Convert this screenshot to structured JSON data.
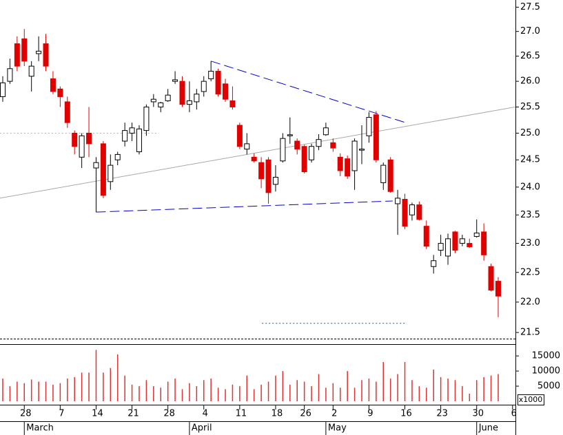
{
  "chart_data": {
    "type": "candlestick",
    "log_scale": true,
    "ylim": [
      21.4,
      27.65
    ],
    "yticks": [
      21.5,
      {
        "value": 22,
        "label": "22.0"
      },
      22.5,
      {
        "value": 23,
        "label": "23.0"
      },
      23.5,
      {
        "value": 24,
        "label": "24.0"
      },
      24.5,
      {
        "value": 25,
        "label": "25.0"
      },
      25.5,
      {
        "value": 26,
        "label": "26.0"
      },
      26.5,
      {
        "value": 27,
        "label": "27.0"
      },
      27.5
    ],
    "up_color": "#ffffff",
    "down_color": "#e00000",
    "categories": [
      null,
      null,
      null,
      "28",
      null,
      null,
      null,
      null,
      "7",
      null,
      null,
      null,
      null,
      "14",
      null,
      null,
      null,
      null,
      "21",
      null,
      null,
      null,
      null,
      "28",
      null,
      null,
      null,
      null,
      "4",
      null,
      null,
      null,
      null,
      "11",
      null,
      null,
      null,
      null,
      "18",
      null,
      null,
      null,
      "26",
      null,
      null,
      null,
      "2",
      null,
      null,
      null,
      null,
      "9",
      null,
      null,
      null,
      null,
      "16",
      null,
      null,
      null,
      null,
      "23",
      null,
      null,
      null,
      null,
      "30",
      null,
      null,
      null,
      null,
      "6"
    ],
    "months": [
      null,
      null,
      null,
      "March",
      null,
      null,
      null,
      null,
      null,
      null,
      null,
      null,
      null,
      null,
      null,
      null,
      null,
      null,
      null,
      null,
      null,
      null,
      null,
      null,
      null,
      null,
      "April",
      null,
      null,
      null,
      null,
      null,
      null,
      null,
      null,
      null,
      null,
      null,
      null,
      null,
      null,
      null,
      null,
      null,
      null,
      "May",
      null,
      null,
      null,
      null,
      null,
      null,
      null,
      null,
      null,
      null,
      null,
      null,
      null,
      null,
      null,
      null,
      null,
      null,
      null,
      null,
      "June",
      null,
      null,
      null,
      null,
      null
    ],
    "open": [
      25.7,
      26.0,
      26.75,
      26.85,
      26.1,
      26.55,
      26.75,
      26.05,
      25.85,
      25.6,
      25.0,
      24.55,
      25.0,
      24.35,
      24.8,
      24.1,
      24.5,
      24.85,
      25.0,
      24.65,
      25.05,
      25.6,
      25.5,
      25.62,
      26.0,
      26.0,
      25.55,
      25.6,
      25.8,
      26.05,
      26.2,
      25.95,
      25.62,
      25.15,
      24.7,
      24.55,
      24.45,
      24.5,
      24.05,
      24.48,
      24.95,
      24.85,
      24.75,
      24.5,
      24.75,
      24.97,
      24.82,
      24.55,
      24.52,
      24.3,
      24.68,
      24.95,
      25.35,
      24.08,
      24.5,
      23.7,
      23.78,
      23.5,
      23.68,
      23.3,
      22.6,
      22.88,
      22.78,
      23.2,
      23.0,
      23.0,
      23.12,
      23.2,
      22.6,
      22.35,
      null,
      null
    ],
    "high": [
      26.1,
      26.45,
      26.9,
      27.05,
      26.4,
      26.9,
      26.95,
      26.2,
      25.9,
      25.7,
      25.05,
      25.0,
      25.5,
      24.55,
      24.85,
      24.6,
      24.65,
      25.2,
      25.2,
      25.15,
      25.55,
      25.75,
      25.6,
      25.85,
      26.2,
      26.1,
      26.0,
      25.85,
      26.1,
      26.4,
      26.25,
      26.05,
      25.9,
      25.2,
      25.0,
      24.62,
      24.55,
      24.55,
      24.4,
      25.0,
      25.3,
      24.9,
      24.78,
      24.8,
      24.98,
      25.2,
      24.9,
      24.62,
      24.58,
      24.9,
      25.15,
      25.4,
      25.42,
      24.45,
      24.55,
      23.95,
      23.88,
      23.72,
      23.74,
      23.4,
      22.8,
      23.15,
      23.17,
      23.22,
      23.15,
      23.08,
      23.42,
      23.35,
      22.65,
      22.42,
      null,
      null
    ],
    "low": [
      25.6,
      25.95,
      26.2,
      26.3,
      25.8,
      26.4,
      26.2,
      25.75,
      25.5,
      25.1,
      24.6,
      24.35,
      24.55,
      23.55,
      23.8,
      23.95,
      24.4,
      24.75,
      24.85,
      24.6,
      24.95,
      25.5,
      25.4,
      25.6,
      25.95,
      25.5,
      25.4,
      25.45,
      25.7,
      26.0,
      25.7,
      25.6,
      25.45,
      24.7,
      24.6,
      24.45,
      23.98,
      23.7,
      23.92,
      24.45,
      24.8,
      24.6,
      24.25,
      24.45,
      24.68,
      24.95,
      24.65,
      24.2,
      24.15,
      23.95,
      24.42,
      24.82,
      24.45,
      23.95,
      23.9,
      23.15,
      23.25,
      23.4,
      23.4,
      22.9,
      22.48,
      22.78,
      22.63,
      22.83,
      22.95,
      22.92,
      23.1,
      22.7,
      22.18,
      21.75,
      null,
      null
    ],
    "close": [
      25.97,
      26.25,
      26.3,
      26.4,
      26.3,
      26.6,
      26.3,
      25.8,
      25.7,
      25.2,
      24.75,
      24.95,
      24.8,
      24.45,
      23.85,
      24.4,
      24.6,
      25.05,
      25.1,
      25.08,
      25.5,
      25.65,
      25.58,
      25.73,
      26.03,
      25.55,
      25.62,
      25.75,
      26.0,
      26.2,
      25.75,
      25.65,
      25.5,
      24.75,
      24.8,
      24.48,
      24.15,
      23.9,
      24.18,
      24.9,
      24.97,
      24.7,
      24.28,
      24.75,
      24.88,
      25.1,
      24.72,
      24.3,
      24.2,
      24.85,
      24.7,
      25.3,
      24.5,
      24.4,
      23.92,
      23.8,
      23.3,
      23.68,
      23.42,
      22.95,
      22.7,
      23.0,
      23.08,
      22.88,
      23.08,
      22.94,
      23.18,
      22.8,
      22.2,
      22.1,
      null,
      null
    ],
    "volume": {
      "unit": "x1000",
      "color": "#e03030",
      "ylim": [
        0,
        18900
      ],
      "yticks": [
        5000,
        10000,
        15000
      ],
      "values": [
        7500,
        5000,
        6500,
        6000,
        7200,
        6500,
        6500,
        5500,
        6000,
        7500,
        8000,
        9500,
        9500,
        17000,
        9500,
        11000,
        15500,
        8500,
        5500,
        5000,
        7000,
        5000,
        4500,
        6500,
        7500,
        4000,
        6000,
        5000,
        7000,
        7500,
        4500,
        4000,
        5500,
        5000,
        8500,
        4000,
        5500,
        6500,
        8500,
        10000,
        5500,
        7000,
        6500,
        5000,
        9000,
        4500,
        6000,
        4500,
        10000,
        4500,
        7000,
        7500,
        6500,
        13000,
        7500,
        9000,
        13000,
        7000,
        5000,
        4500,
        10500,
        8000,
        7500,
        7000,
        5000,
        2500,
        7000,
        8000,
        8500,
        9000,
        null,
        null
      ]
    },
    "trend_lines": [
      {
        "x": [
          -0.4,
          71.4
        ],
        "y": [
          23.8,
          25.5
        ],
        "color": "#a8a8a8",
        "style": "solid"
      },
      {
        "x": [
          29,
          56.1
        ],
        "y": [
          26.4,
          25.2
        ],
        "color": "#0000cc",
        "style": "dashed"
      },
      {
        "x": [
          13,
          54.3
        ],
        "y": [
          23.55,
          23.75
        ],
        "color": "#0000cc",
        "style": "dashed"
      },
      {
        "x": [
          36.1,
          56.1
        ],
        "y": [
          21.65,
          21.65
        ],
        "color": "#0055dd",
        "style": "dotted"
      },
      {
        "x": [
          -0.4,
          21.7
        ],
        "y": [
          25.0,
          25.0
        ],
        "color": "#b0b0b0",
        "style": "dotted"
      }
    ]
  }
}
